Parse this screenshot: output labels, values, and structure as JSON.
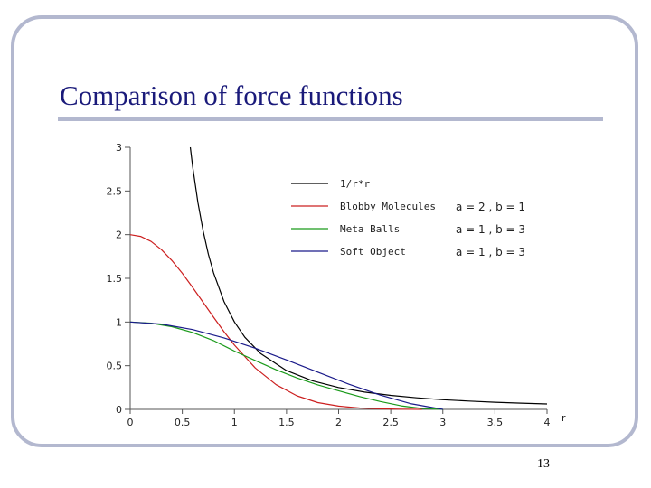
{
  "slide": {
    "title": "Comparison of force functions",
    "page_number": "13"
  },
  "colors": {
    "frame": "#b3b8cf",
    "title": "#1a1a7a"
  },
  "chart_data": {
    "type": "line",
    "xlabel": "r",
    "ylabel": "",
    "xlim": [
      0,
      4
    ],
    "ylim": [
      0,
      3
    ],
    "x_ticks": [
      "0",
      "0.5",
      "1",
      "1.5",
      "2",
      "2.5",
      "3",
      "3.5",
      "4"
    ],
    "y_ticks": [
      "0",
      "0.5",
      "1",
      "1.5",
      "2",
      "2.5",
      "3"
    ],
    "grid": false,
    "legend_position": "top-right",
    "series": [
      {
        "name": "1/r*r",
        "params": "",
        "color": "#000000",
        "x": [
          0.577,
          0.6,
          0.65,
          0.7,
          0.75,
          0.8,
          0.9,
          1.0,
          1.1,
          1.25,
          1.5,
          1.75,
          2.0,
          2.25,
          2.5,
          2.75,
          3.0,
          3.25,
          3.5,
          3.75,
          4.0
        ],
        "y": [
          3.0,
          2.778,
          2.367,
          2.041,
          1.778,
          1.563,
          1.235,
          1.0,
          0.826,
          0.64,
          0.444,
          0.327,
          0.25,
          0.198,
          0.16,
          0.132,
          0.111,
          0.095,
          0.082,
          0.071,
          0.0625
        ]
      },
      {
        "name": "Blobby Molecules",
        "params": "a = 2 , b = 1",
        "color": "#cc2020",
        "x": [
          0,
          0.1,
          0.2,
          0.3,
          0.4,
          0.5,
          0.6,
          0.7,
          0.8,
          0.9,
          1.0,
          1.2,
          1.4,
          1.6,
          1.8,
          2.0,
          2.2,
          2.4,
          2.6,
          2.8
        ],
        "y": [
          2.0,
          1.98,
          1.922,
          1.828,
          1.704,
          1.558,
          1.395,
          1.225,
          1.055,
          0.89,
          0.736,
          0.474,
          0.282,
          0.155,
          0.078,
          0.037,
          0.016,
          0.006,
          0.002,
          0.0
        ]
      },
      {
        "name": "Meta Balls",
        "params": "a = 1 , b = 3",
        "color": "#1a9a1a",
        "x": [
          0,
          0.2,
          0.4,
          0.6,
          0.8,
          1.0,
          1.2,
          1.4,
          1.6,
          1.8,
          2.0,
          2.2,
          2.4,
          2.6,
          2.8,
          3.0
        ],
        "y": [
          1.0,
          0.987,
          0.947,
          0.88,
          0.787,
          0.667,
          0.56,
          0.453,
          0.36,
          0.28,
          0.213,
          0.147,
          0.09,
          0.04,
          0.01,
          0.0
        ]
      },
      {
        "name": "Soft Object",
        "params": "a = 1 , b = 3",
        "color": "#1a1a8a",
        "x": [
          0,
          0.3,
          0.6,
          0.9,
          1.2,
          1.5,
          1.8,
          2.1,
          2.4,
          2.7,
          3.0
        ],
        "y": [
          1.0,
          0.977,
          0.913,
          0.818,
          0.7,
          0.566,
          0.426,
          0.288,
          0.163,
          0.063,
          0.0
        ]
      }
    ]
  }
}
